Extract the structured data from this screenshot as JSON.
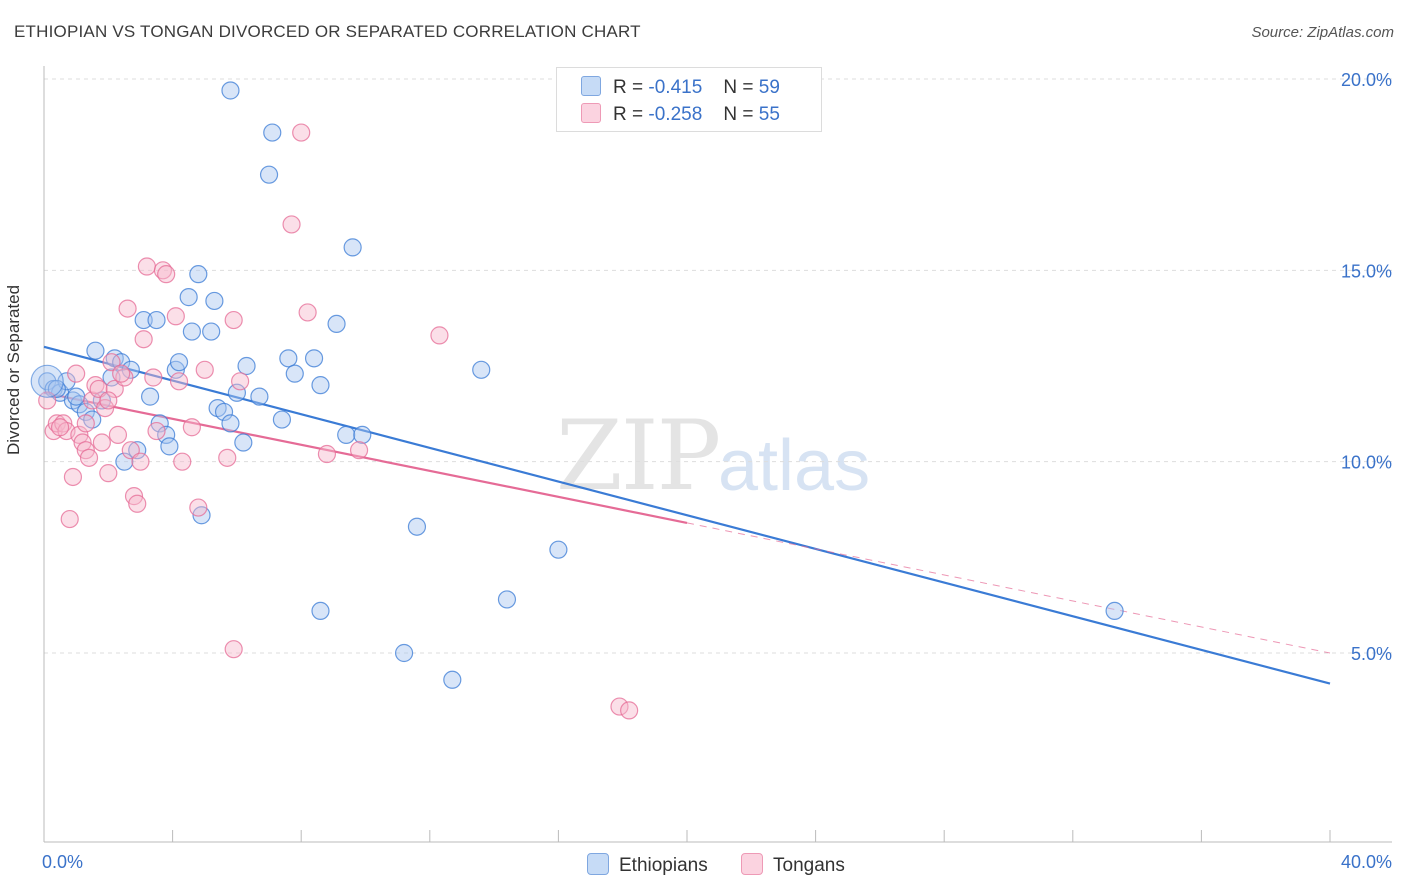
{
  "title": "ETHIOPIAN VS TONGAN DIVORCED OR SEPARATED CORRELATION CHART",
  "source": "Source: ZipAtlas.com",
  "watermark": {
    "zip": "ZIP",
    "atlas": "atlas"
  },
  "legend_top": [
    {
      "r_label": "R =",
      "r_value": "-0.415",
      "n_label": "N =",
      "n_value": "59",
      "color": "#a8c6ef"
    },
    {
      "r_label": "R =",
      "r_value": "-0.258",
      "n_label": "N =",
      "n_value": "55",
      "color": "#f7b8cb"
    }
  ],
  "legend_bottom": [
    {
      "label": "Ethiopians",
      "color": "#a8c6ef"
    },
    {
      "label": "Tongans",
      "color": "#f7b8cb"
    }
  ],
  "chart_data": {
    "type": "scatter",
    "title": "ETHIOPIAN VS TONGAN DIVORCED OR SEPARATED CORRELATION CHART",
    "ylabel": "Divorced or Separated",
    "xlabel": "",
    "xlim": [
      0,
      40
    ],
    "ylim": [
      0,
      21
    ],
    "x_tick_labels": {
      "left": "0.0%",
      "right": "40.0%"
    },
    "y_ticks": [
      {
        "value": 5,
        "label": "5.0%"
      },
      {
        "value": 10,
        "label": "10.0%"
      },
      {
        "value": 15,
        "label": "15.0%"
      },
      {
        "value": 20,
        "label": "20.0%"
      }
    ],
    "grid": true,
    "series": [
      {
        "name": "Ethiopians",
        "color": "#3a7bd5",
        "fill": "#a8c6ef",
        "points": [
          [
            0.1,
            12.1
          ],
          [
            0.3,
            11.9
          ],
          [
            0.5,
            11.8
          ],
          [
            0.7,
            12.1
          ],
          [
            0.9,
            11.6
          ],
          [
            1.1,
            11.5
          ],
          [
            1.3,
            11.3
          ],
          [
            1.5,
            11.1
          ],
          [
            1.6,
            12.9
          ],
          [
            1.8,
            11.6
          ],
          [
            2.1,
            12.2
          ],
          [
            2.2,
            12.7
          ],
          [
            2.4,
            12.6
          ],
          [
            2.5,
            10.0
          ],
          [
            2.7,
            12.4
          ],
          [
            2.9,
            10.3
          ],
          [
            3.1,
            13.7
          ],
          [
            3.3,
            11.7
          ],
          [
            3.5,
            13.7
          ],
          [
            3.6,
            11.0
          ],
          [
            3.8,
            10.7
          ],
          [
            3.9,
            10.4
          ],
          [
            4.1,
            12.4
          ],
          [
            4.2,
            12.6
          ],
          [
            4.5,
            14.3
          ],
          [
            4.6,
            13.4
          ],
          [
            4.8,
            14.9
          ],
          [
            4.9,
            8.6
          ],
          [
            5.2,
            13.4
          ],
          [
            5.3,
            14.2
          ],
          [
            5.4,
            11.4
          ],
          [
            5.6,
            11.3
          ],
          [
            5.8,
            11.0
          ],
          [
            5.8,
            19.7
          ],
          [
            6.0,
            11.8
          ],
          [
            6.2,
            10.5
          ],
          [
            6.3,
            12.5
          ],
          [
            6.7,
            11.7
          ],
          [
            7.0,
            17.5
          ],
          [
            7.1,
            18.6
          ],
          [
            7.4,
            11.1
          ],
          [
            7.6,
            12.7
          ],
          [
            7.8,
            12.3
          ],
          [
            8.4,
            12.7
          ],
          [
            8.6,
            12.0
          ],
          [
            9.1,
            13.6
          ],
          [
            9.4,
            10.7
          ],
          [
            9.6,
            15.6
          ],
          [
            9.9,
            10.7
          ],
          [
            11.2,
            5.0
          ],
          [
            11.6,
            8.3
          ],
          [
            12.7,
            4.3
          ],
          [
            13.6,
            12.4
          ],
          [
            14.4,
            6.4
          ],
          [
            8.6,
            6.1
          ],
          [
            16.0,
            7.7
          ],
          [
            33.3,
            6.1
          ],
          [
            1.0,
            11.7
          ],
          [
            0.4,
            11.9
          ]
        ]
      },
      {
        "name": "Tongans",
        "color": "#e56b96",
        "fill": "#f7b8cb",
        "points": [
          [
            0.1,
            11.6
          ],
          [
            0.3,
            10.8
          ],
          [
            0.4,
            11.0
          ],
          [
            0.6,
            11.0
          ],
          [
            0.7,
            10.8
          ],
          [
            0.8,
            8.5
          ],
          [
            0.9,
            9.6
          ],
          [
            1.0,
            12.3
          ],
          [
            1.1,
            10.7
          ],
          [
            1.2,
            10.5
          ],
          [
            1.3,
            10.3
          ],
          [
            1.4,
            10.1
          ],
          [
            1.5,
            11.6
          ],
          [
            1.6,
            12.0
          ],
          [
            1.7,
            11.9
          ],
          [
            1.8,
            10.5
          ],
          [
            1.9,
            11.4
          ],
          [
            2.0,
            9.7
          ],
          [
            2.1,
            12.6
          ],
          [
            2.2,
            11.9
          ],
          [
            2.3,
            10.7
          ],
          [
            2.5,
            12.2
          ],
          [
            2.6,
            14.0
          ],
          [
            2.7,
            10.3
          ],
          [
            2.8,
            9.1
          ],
          [
            2.9,
            8.9
          ],
          [
            3.0,
            10.0
          ],
          [
            3.1,
            13.2
          ],
          [
            3.2,
            15.1
          ],
          [
            3.4,
            12.2
          ],
          [
            3.5,
            10.8
          ],
          [
            3.7,
            15.0
          ],
          [
            3.8,
            14.9
          ],
          [
            4.1,
            13.8
          ],
          [
            4.2,
            12.1
          ],
          [
            4.3,
            10.0
          ],
          [
            4.6,
            10.9
          ],
          [
            4.8,
            8.8
          ],
          [
            5.0,
            12.4
          ],
          [
            5.7,
            10.1
          ],
          [
            5.9,
            5.1
          ],
          [
            5.9,
            13.7
          ],
          [
            6.1,
            12.1
          ],
          [
            7.7,
            16.2
          ],
          [
            8.0,
            18.6
          ],
          [
            8.2,
            13.9
          ],
          [
            8.8,
            10.2
          ],
          [
            9.8,
            10.3
          ],
          [
            12.3,
            13.3
          ],
          [
            17.9,
            3.6
          ],
          [
            18.2,
            3.5
          ],
          [
            1.3,
            11.0
          ],
          [
            0.5,
            10.9
          ],
          [
            2.4,
            12.3
          ],
          [
            2.0,
            11.6
          ]
        ]
      }
    ],
    "trend_lines": [
      {
        "series": "Ethiopians",
        "x": [
          0,
          40
        ],
        "y": [
          13.0,
          4.2
        ],
        "style": "solid"
      },
      {
        "series": "Tongans",
        "x": [
          0,
          20
        ],
        "y": [
          11.8,
          8.4
        ],
        "style": "solid"
      },
      {
        "series": "Tongans",
        "x": [
          20,
          40
        ],
        "y": [
          8.4,
          5.0
        ],
        "style": "dashed"
      }
    ]
  }
}
